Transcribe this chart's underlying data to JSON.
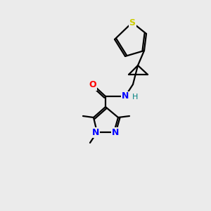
{
  "background_color": "#ebebeb",
  "figsize": [
    3.0,
    3.0
  ],
  "dpi": 100,
  "colors": {
    "S": "#cccc00",
    "O": "#ff0000",
    "N": "#0000ff",
    "H": "#008080",
    "C": "#000000"
  }
}
